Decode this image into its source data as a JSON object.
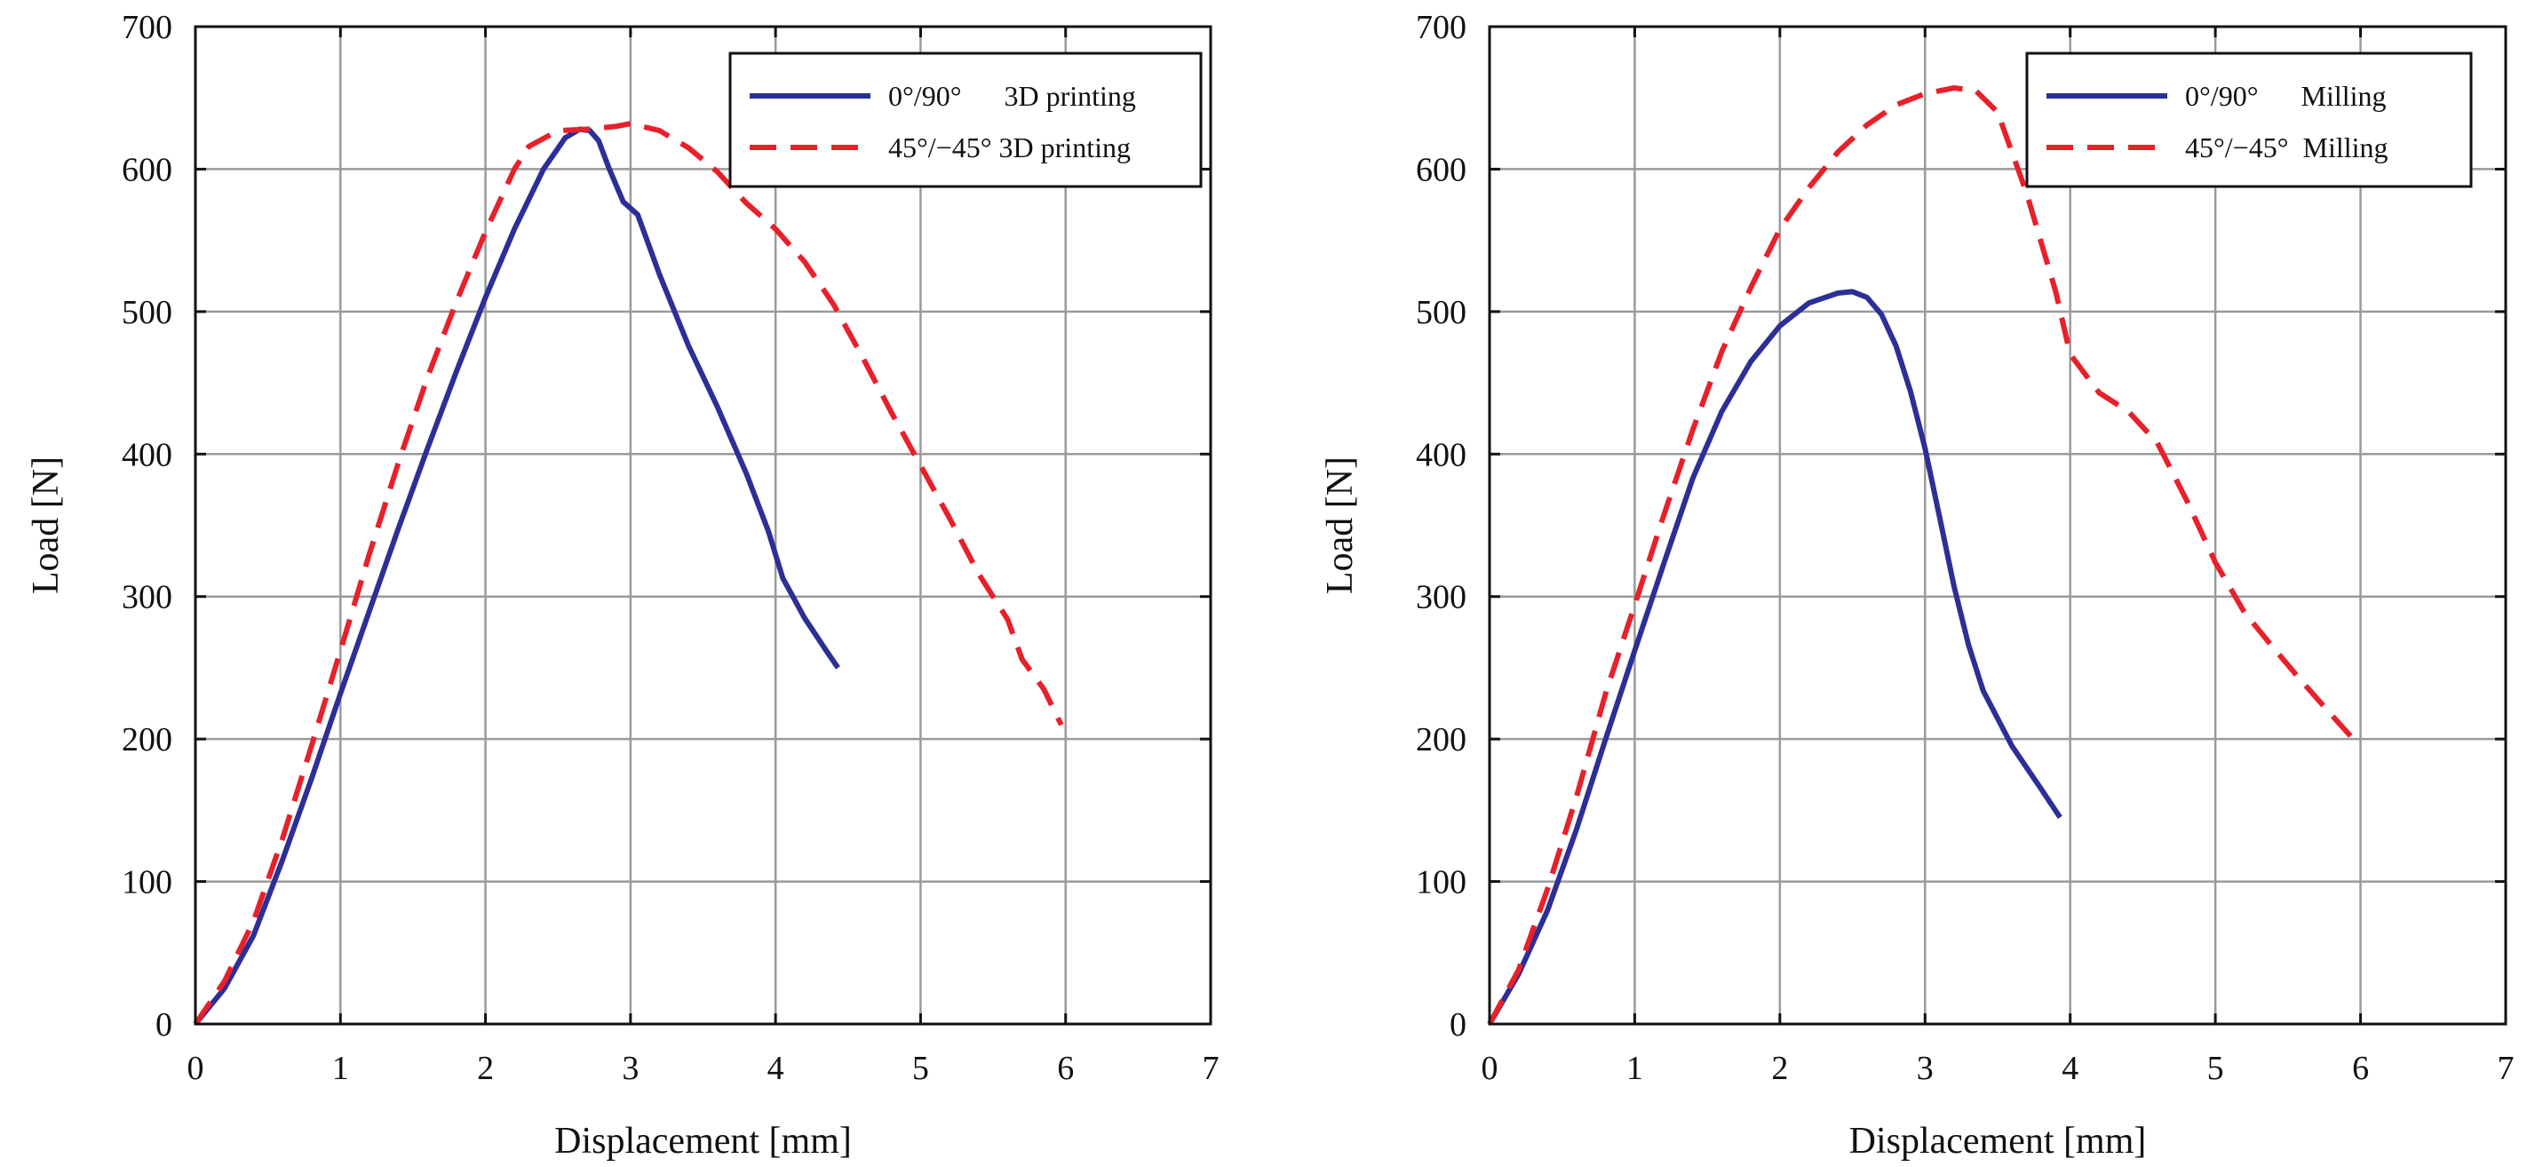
{
  "chart_data": [
    {
      "type": "line",
      "title": "",
      "xlabel": "Displacement [mm]",
      "ylabel": "Load [N]",
      "xlim": [
        0,
        7
      ],
      "ylim": [
        0,
        700
      ],
      "xticks": [
        0,
        1,
        2,
        3,
        4,
        5,
        6,
        7
      ],
      "yticks": [
        0,
        100,
        200,
        300,
        400,
        500,
        600,
        700
      ],
      "grid": true,
      "legend_position": "top-right",
      "series": [
        {
          "name": "0°/90°      3D printing",
          "color": "#2b2f96",
          "style": "solid",
          "x": [
            0,
            0.2,
            0.4,
            0.6,
            0.8,
            1.0,
            1.2,
            1.4,
            1.6,
            1.8,
            2.0,
            2.2,
            2.4,
            2.55,
            2.65,
            2.72,
            2.78,
            2.85,
            2.95,
            3.05,
            3.2,
            3.4,
            3.6,
            3.8,
            3.95,
            4.05,
            4.2,
            4.35,
            4.43
          ],
          "y": [
            0,
            25,
            62,
            115,
            172,
            232,
            290,
            348,
            404,
            458,
            510,
            558,
            600,
            622,
            628,
            627,
            620,
            601,
            577,
            568,
            526,
            476,
            433,
            386,
            346,
            313,
            285,
            262,
            250
          ]
        },
        {
          "name": "45°/−45° 3D printing",
          "color": "#e8202a",
          "style": "dashed",
          "x": [
            0,
            0.2,
            0.4,
            0.6,
            0.8,
            1.0,
            1.2,
            1.4,
            1.6,
            1.8,
            2.0,
            2.2,
            2.3,
            2.5,
            2.7,
            2.9,
            3.0,
            3.2,
            3.4,
            3.6,
            3.8,
            4.0,
            4.2,
            4.4,
            4.6,
            4.8,
            5.0,
            5.2,
            5.4,
            5.6,
            5.7,
            5.85,
            5.97
          ],
          "y": [
            0,
            30,
            72,
            130,
            195,
            262,
            330,
            394,
            454,
            507,
            556,
            600,
            616,
            627,
            628,
            630,
            632,
            627,
            615,
            598,
            576,
            558,
            535,
            505,
            468,
            429,
            392,
            355,
            316,
            284,
            256,
            235,
            210
          ]
        }
      ]
    },
    {
      "type": "line",
      "title": "",
      "xlabel": "Displacement [mm]",
      "ylabel": "Load [N]",
      "xlim": [
        0,
        7
      ],
      "ylim": [
        0,
        700
      ],
      "xticks": [
        0,
        1,
        2,
        3,
        4,
        5,
        6,
        7
      ],
      "yticks": [
        0,
        100,
        200,
        300,
        400,
        500,
        600,
        700
      ],
      "grid": true,
      "legend_position": "top-right",
      "series": [
        {
          "name": "0°/90°      Milling",
          "color": "#2b2f96",
          "style": "solid",
          "x": [
            0,
            0.2,
            0.4,
            0.6,
            0.8,
            1.0,
            1.2,
            1.4,
            1.6,
            1.8,
            2.0,
            2.2,
            2.4,
            2.5,
            2.6,
            2.7,
            2.8,
            2.9,
            3.0,
            3.1,
            3.2,
            3.3,
            3.4,
            3.6,
            3.8,
            3.93
          ],
          "y": [
            0,
            35,
            80,
            137,
            200,
            262,
            323,
            383,
            430,
            465,
            490,
            506,
            513,
            514,
            510,
            498,
            476,
            444,
            404,
            356,
            307,
            266,
            234,
            195,
            165,
            145
          ]
        },
        {
          "name": "45°/−45°  Milling",
          "color": "#e8202a",
          "style": "dashed",
          "x": [
            0,
            0.2,
            0.4,
            0.6,
            0.8,
            1.0,
            1.2,
            1.4,
            1.6,
            1.8,
            2.0,
            2.2,
            2.4,
            2.6,
            2.8,
            3.0,
            3.2,
            3.35,
            3.5,
            3.7,
            3.9,
            4.0,
            4.2,
            4.4,
            4.6,
            4.8,
            5.0,
            5.2,
            5.4,
            5.6,
            5.8,
            5.95
          ],
          "y": [
            0,
            38,
            95,
            160,
            232,
            294,
            357,
            417,
            472,
            517,
            558,
            587,
            612,
            631,
            645,
            653,
            657,
            655,
            640,
            583,
            514,
            470,
            443,
            430,
            408,
            368,
            324,
            289,
            264,
            240,
            217,
            200
          ]
        }
      ]
    }
  ]
}
